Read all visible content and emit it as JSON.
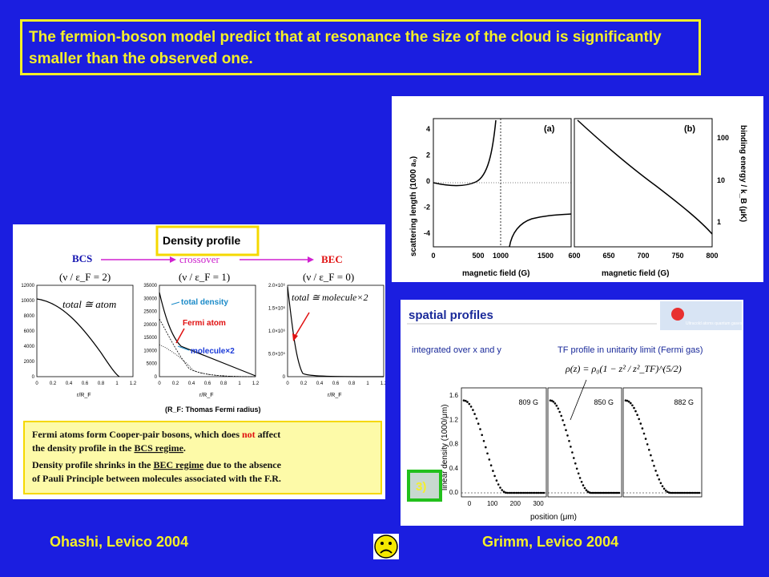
{
  "title_text": "The fermion-boson model predict that at resonance the size of the cloud is significantly smaller than the observed one.",
  "colors": {
    "background": "#1b1ee0",
    "accent": "#f5f028",
    "green": "#22c01c",
    "red": "#e81010"
  },
  "ohashi": {
    "header": "Density profile",
    "bcs": "BCS",
    "crossover": "crossover",
    "bec": "BEC",
    "ratio_bcs": "(ν / ε_F = 2)",
    "ratio_cross": "(ν / ε_F = 1)",
    "ratio_bec": "(ν / ε_F = 0)",
    "total_atom": "total ≅ atom",
    "total_molecule": "total ≅ molecule×2",
    "total_density": "total density",
    "fermi_atom": "Fermi atom",
    "molecule_x2": "molecule×2",
    "xlabel": "r/R_F",
    "rf_note": "(R_F: Thomas Fermi radius)",
    "note_1a": "Fermi atoms form Cooper-pair bosons, which does",
    "note_1_not": "not",
    "note_1b": "affect",
    "note_1c": "the density profile in the",
    "note_1_regime": "BCS regime",
    "note_2a": "Density profile shrinks in the",
    "note_2_regime": "BEC regime",
    "note_2b": "due to the absence",
    "note_2c": "of Pauli Principle between molecules associated with the F.R.",
    "yticks_1": [
      "12000",
      "10000",
      "8000",
      "6000",
      "4000",
      "2000",
      "0"
    ],
    "yticks_2": [
      "35000",
      "30000",
      "25000",
      "20000",
      "15000",
      "10000",
      "5000",
      "0"
    ],
    "yticks_3": [
      "2.0×10⁶",
      "1.5×10⁶",
      "1.0×10⁶",
      "5.0×10⁵",
      "0"
    ],
    "xticks": [
      "0",
      "0.2",
      "0.4",
      "0.6",
      "0.8",
      "1",
      "1.2"
    ]
  },
  "grimm_a": {
    "label_a": "(a)",
    "label_b": "(b)",
    "ylabel_left": "scattering length (1000 a₀)",
    "ylabel_right": "binding energy / k_B (μK)",
    "xlabel": "magnetic field (G)",
    "yticks_left": [
      "4",
      "2",
      "0",
      "-2",
      "-4"
    ],
    "xticks_left": [
      "0",
      "500",
      "1000",
      "1500"
    ],
    "xticks_right": [
      "600",
      "650",
      "700",
      "750",
      "800"
    ],
    "yticks_right": [
      "100",
      "10",
      "1"
    ]
  },
  "grimm_b": {
    "title": "spatial profiles",
    "subtitle": "integrated over x and y",
    "tf_label": "TF profile in unitarity limit (Fermi gas)",
    "formula": "ρ(z) = ρ₀(1 − z² / z²_TF)^(5/2)",
    "logo_text": "Ultracold atoms quantum gases",
    "ylabel": "linear density  (1000/μm)",
    "xlabel": "position (μm)",
    "fields": [
      "809 G",
      "850 G",
      "882 G"
    ],
    "yticks": [
      "1.6",
      "1.2",
      "0.8",
      "0.4",
      "0.0"
    ],
    "xticks": [
      "0",
      "100",
      "200",
      "300"
    ],
    "badge": "3)"
  },
  "footer": {
    "left": "Ohashi, Levico 2004",
    "right": "Grimm, Levico 2004",
    "emoji_name": "sad-face"
  }
}
